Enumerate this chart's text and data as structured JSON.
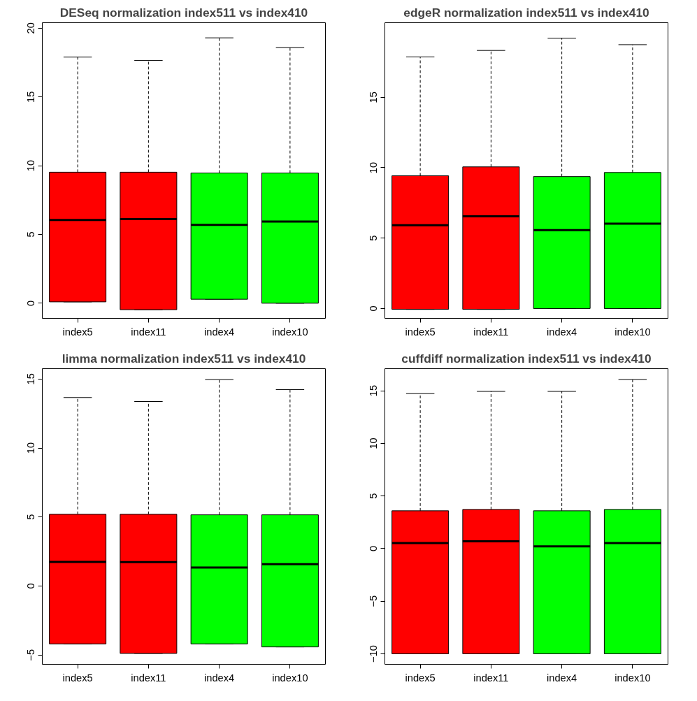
{
  "chart_data": [
    {
      "type": "box",
      "title": "DESeq normalization index511 vs index410",
      "categories": [
        "index5",
        "index11",
        "index4",
        "index10"
      ],
      "colors": [
        "#ff0000",
        "#ff0000",
        "#00ff00",
        "#00ff00"
      ],
      "ylim": [
        -1.1,
        20.4
      ],
      "yticks": [
        0,
        5,
        10,
        15,
        20
      ],
      "grid": false,
      "boxes": [
        {
          "low": 0.1,
          "q1": 0.1,
          "median": 6.06,
          "q3": 9.53,
          "high": 17.9
        },
        {
          "low": -0.47,
          "q1": -0.47,
          "median": 6.12,
          "q3": 9.53,
          "high": 17.65
        },
        {
          "low": 0.29,
          "q1": 0.29,
          "median": 5.7,
          "q3": 9.47,
          "high": 19.3
        },
        {
          "low": 0,
          "q1": 0,
          "median": 5.94,
          "q3": 9.47,
          "high": 18.6
        }
      ]
    },
    {
      "type": "box",
      "title": "edgeR normalization index511 vs index410",
      "categories": [
        "index5",
        "index11",
        "index4",
        "index10"
      ],
      "colors": [
        "#ff0000",
        "#ff0000",
        "#00ff00",
        "#00ff00"
      ],
      "ylim": [
        -0.7,
        20.3
      ],
      "yticks": [
        0,
        5,
        10,
        15
      ],
      "grid": false,
      "boxes": [
        {
          "low": -0.06,
          "q1": -0.06,
          "median": 5.92,
          "q3": 9.43,
          "high": 17.87
        },
        {
          "low": -0.06,
          "q1": -0.06,
          "median": 6.55,
          "q3": 10.06,
          "high": 18.33
        },
        {
          "low": 0,
          "q1": 0,
          "median": 5.57,
          "q3": 9.37,
          "high": 19.2
        },
        {
          "low": 0,
          "q1": 0,
          "median": 6.03,
          "q3": 9.66,
          "high": 18.74
        }
      ]
    },
    {
      "type": "box",
      "title": "limma normalization index511 vs index410",
      "categories": [
        "index5",
        "index11",
        "index4",
        "index10"
      ],
      "colors": [
        "#ff0000",
        "#ff0000",
        "#00ff00",
        "#00ff00"
      ],
      "ylim": [
        -5.67,
        15.75
      ],
      "yticks": [
        -5,
        0,
        5,
        10,
        15
      ],
      "grid": false,
      "boxes": [
        {
          "low": -4.19,
          "q1": -4.19,
          "median": 1.75,
          "q3": 5.2,
          "high": 13.66
        },
        {
          "low": -4.88,
          "q1": -4.88,
          "median": 1.73,
          "q3": 5.2,
          "high": 13.37
        },
        {
          "low": -4.19,
          "q1": -4.19,
          "median": 1.34,
          "q3": 5.16,
          "high": 14.96
        },
        {
          "low": -4.41,
          "q1": -4.41,
          "median": 1.59,
          "q3": 5.16,
          "high": 14.23
        }
      ]
    },
    {
      "type": "box",
      "title": "cuffdiff normalization index511 vs index410",
      "categories": [
        "index5",
        "index11",
        "index4",
        "index10"
      ],
      "colors": [
        "#ff0000",
        "#ff0000",
        "#00ff00",
        "#00ff00"
      ],
      "ylim": [
        -11,
        17.1
      ],
      "yticks": [
        -10,
        -5,
        0,
        5,
        10,
        15
      ],
      "grid": false,
      "boxes": [
        {
          "low": -10,
          "q1": -10,
          "median": 0.52,
          "q3": 3.59,
          "high": 14.73
        },
        {
          "low": -10,
          "q1": -10,
          "median": 0.7,
          "q3": 3.72,
          "high": 14.94
        },
        {
          "low": -10,
          "q1": -10,
          "median": 0.21,
          "q3": 3.59,
          "high": 14.94
        },
        {
          "low": -10,
          "q1": -10,
          "median": 0.52,
          "q3": 3.72,
          "high": 16.07
        }
      ]
    }
  ]
}
